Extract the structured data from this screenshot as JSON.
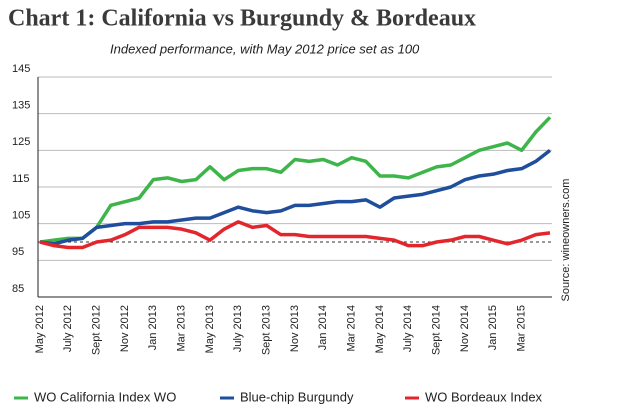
{
  "chart_data": {
    "type": "line",
    "title": "Chart 1: California vs Burgundy & Bordeaux",
    "subtitle": "Indexed performance, with May 2012 price set as 100",
    "source": "Source: wineowners.com",
    "categories": [
      "May 2012",
      null,
      "July 2012",
      null,
      "Sept 2012",
      null,
      "Nov 2012",
      null,
      "Jan 2013",
      null,
      "Mar 2013",
      null,
      "May 2013",
      null,
      "July 2013",
      null,
      "Sept 2013",
      null,
      "Nov 2013",
      null,
      "Jan 2014",
      null,
      "Mar 2014",
      null,
      "May 2014",
      null,
      "July 2014",
      null,
      "Sept 2014",
      null,
      "Nov 2014",
      null,
      "Jan 2015",
      null,
      "Mar 2015",
      null,
      null
    ],
    "series": [
      {
        "name": "WO California Index WO",
        "color": "#3db54a",
        "values": [
          100,
          100.5,
          101,
          101,
          104,
          110,
          111,
          112,
          117,
          117.5,
          116.5,
          117,
          120.5,
          117,
          119.5,
          120,
          120,
          119,
          122.5,
          122,
          122.5,
          121,
          123,
          122,
          118,
          118,
          117.5,
          119,
          120.5,
          121,
          123,
          125,
          126,
          127,
          125,
          130,
          134
        ]
      },
      {
        "name": "Blue-chip Burgundy",
        "color": "#1f4e9c",
        "values": [
          100,
          99.5,
          100.5,
          101,
          104,
          104.5,
          105,
          105,
          105.5,
          105.5,
          106,
          106.5,
          106.5,
          108,
          109.5,
          108.5,
          108,
          108.5,
          110,
          110,
          110.5,
          111,
          111,
          111.5,
          109.5,
          112,
          112.5,
          113,
          114,
          115,
          117,
          118,
          118.5,
          119.5,
          120,
          122,
          125
        ]
      },
      {
        "name": "WO Bordeaux Index",
        "color": "#e3262c",
        "values": [
          100,
          99,
          98.5,
          98.5,
          100,
          100.5,
          102,
          104,
          104,
          104,
          103.5,
          102.5,
          100.5,
          103.5,
          105.5,
          104,
          104.5,
          102,
          102,
          101.5,
          101.5,
          101.5,
          101.5,
          101.5,
          101,
          100.5,
          99,
          99,
          100,
          100.5,
          101.5,
          101.5,
          100.5,
          99.5,
          100.5,
          102,
          102.5
        ]
      }
    ],
    "ylim": [
      85,
      145
    ],
    "yticks": [
      85,
      95,
      105,
      115,
      125,
      135,
      145
    ],
    "grid": true,
    "reference_line": 100,
    "legend": "bottom"
  }
}
